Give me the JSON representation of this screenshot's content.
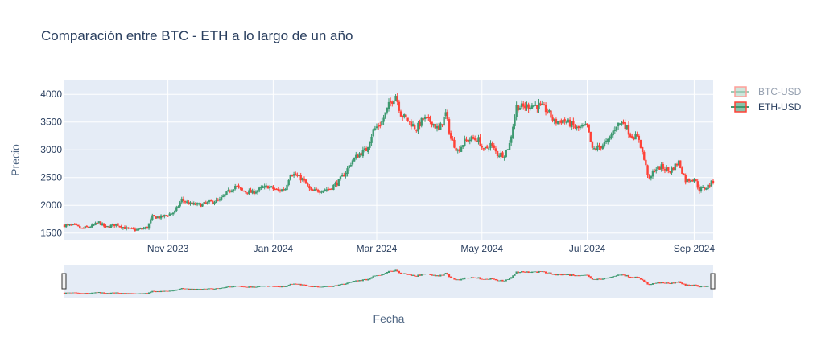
{
  "chart_data": {
    "type": "candlestick",
    "title": "Comparación entre BTC - ETH a lo largo de un año",
    "xlabel": "Fecha",
    "ylabel": "Precio",
    "xlim": [
      "2023-09-02",
      "2024-09-12"
    ],
    "ylim": [
      1380,
      4250
    ],
    "yticks": [
      1500,
      2000,
      2500,
      3000,
      3500,
      4000
    ],
    "xticks": [
      {
        "date": "2023-11-01",
        "label": "Nov 2023"
      },
      {
        "date": "2024-01-01",
        "label": "Jan 2024"
      },
      {
        "date": "2024-03-01",
        "label": "Mar 2024"
      },
      {
        "date": "2024-05-01",
        "label": "May 2024"
      },
      {
        "date": "2024-07-01",
        "label": "Jul 2024"
      },
      {
        "date": "2024-09-01",
        "label": "Sep 2024"
      }
    ],
    "legend_position": "top-right",
    "increasing_color": "#3d9970",
    "decreasing_color": "#ff4136",
    "plot_bgcolor": "#e5ecf6",
    "series": [
      {
        "name": "BTC-USD",
        "visible": false
      },
      {
        "name": "ETH-USD",
        "visible": true,
        "close_points": [
          [
            "2023-09-02",
            1640
          ],
          [
            "2023-09-08",
            1635
          ],
          [
            "2023-09-12",
            1580
          ],
          [
            "2023-09-18",
            1625
          ],
          [
            "2023-09-22",
            1690
          ],
          [
            "2023-09-26",
            1600
          ],
          [
            "2023-10-02",
            1660
          ],
          [
            "2023-10-08",
            1580
          ],
          [
            "2023-10-14",
            1555
          ],
          [
            "2023-10-20",
            1600
          ],
          [
            "2023-10-23",
            1790
          ],
          [
            "2023-10-28",
            1785
          ],
          [
            "2023-11-05",
            1880
          ],
          [
            "2023-11-09",
            2100
          ],
          [
            "2023-11-14",
            2020
          ],
          [
            "2023-11-20",
            2010
          ],
          [
            "2023-11-26",
            2060
          ],
          [
            "2023-12-01",
            2090
          ],
          [
            "2023-12-06",
            2240
          ],
          [
            "2023-12-10",
            2350
          ],
          [
            "2023-12-14",
            2260
          ],
          [
            "2023-12-20",
            2230
          ],
          [
            "2023-12-25",
            2300
          ],
          [
            "2023-12-29",
            2340
          ],
          [
            "2024-01-04",
            2260
          ],
          [
            "2024-01-08",
            2300
          ],
          [
            "2024-01-11",
            2580
          ],
          [
            "2024-01-14",
            2540
          ],
          [
            "2024-01-18",
            2470
          ],
          [
            "2024-01-23",
            2250
          ],
          [
            "2024-01-28",
            2270
          ],
          [
            "2024-02-03",
            2300
          ],
          [
            "2024-02-08",
            2430
          ],
          [
            "2024-02-12",
            2600
          ],
          [
            "2024-02-16",
            2810
          ],
          [
            "2024-02-20",
            2930
          ],
          [
            "2024-02-24",
            3000
          ],
          [
            "2024-02-28",
            3350
          ],
          [
            "2024-03-04",
            3500
          ],
          [
            "2024-03-08",
            3800
          ],
          [
            "2024-03-12",
            3990
          ],
          [
            "2024-03-15",
            3650
          ],
          [
            "2024-03-20",
            3500
          ],
          [
            "2024-03-24",
            3380
          ],
          [
            "2024-03-28",
            3560
          ],
          [
            "2024-04-02",
            3500
          ],
          [
            "2024-04-06",
            3350
          ],
          [
            "2024-04-10",
            3650
          ],
          [
            "2024-04-13",
            3200
          ],
          [
            "2024-04-17",
            2980
          ],
          [
            "2024-04-21",
            3150
          ],
          [
            "2024-04-25",
            3200
          ],
          [
            "2024-04-29",
            3180
          ],
          [
            "2024-05-02",
            2980
          ],
          [
            "2024-05-06",
            3100
          ],
          [
            "2024-05-10",
            2920
          ],
          [
            "2024-05-14",
            2920
          ],
          [
            "2024-05-17",
            3100
          ],
          [
            "2024-05-21",
            3780
          ],
          [
            "2024-05-25",
            3770
          ],
          [
            "2024-05-29",
            3800
          ],
          [
            "2024-06-03",
            3800
          ],
          [
            "2024-06-08",
            3700
          ],
          [
            "2024-06-12",
            3500
          ],
          [
            "2024-06-17",
            3530
          ],
          [
            "2024-06-21",
            3470
          ],
          [
            "2024-06-25",
            3380
          ],
          [
            "2024-07-01",
            3420
          ],
          [
            "2024-07-04",
            3000
          ],
          [
            "2024-07-08",
            3050
          ],
          [
            "2024-07-13",
            3150
          ],
          [
            "2024-07-18",
            3450
          ],
          [
            "2024-07-22",
            3500
          ],
          [
            "2024-07-26",
            3270
          ],
          [
            "2024-07-31",
            3200
          ],
          [
            "2024-08-04",
            2700
          ],
          [
            "2024-08-06",
            2450
          ],
          [
            "2024-08-09",
            2650
          ],
          [
            "2024-08-13",
            2690
          ],
          [
            "2024-08-18",
            2620
          ],
          [
            "2024-08-23",
            2780
          ],
          [
            "2024-08-27",
            2450
          ],
          [
            "2024-09-01",
            2480
          ],
          [
            "2024-09-04",
            2280
          ],
          [
            "2024-09-08",
            2320
          ],
          [
            "2024-09-12",
            2430
          ]
        ]
      }
    ]
  }
}
